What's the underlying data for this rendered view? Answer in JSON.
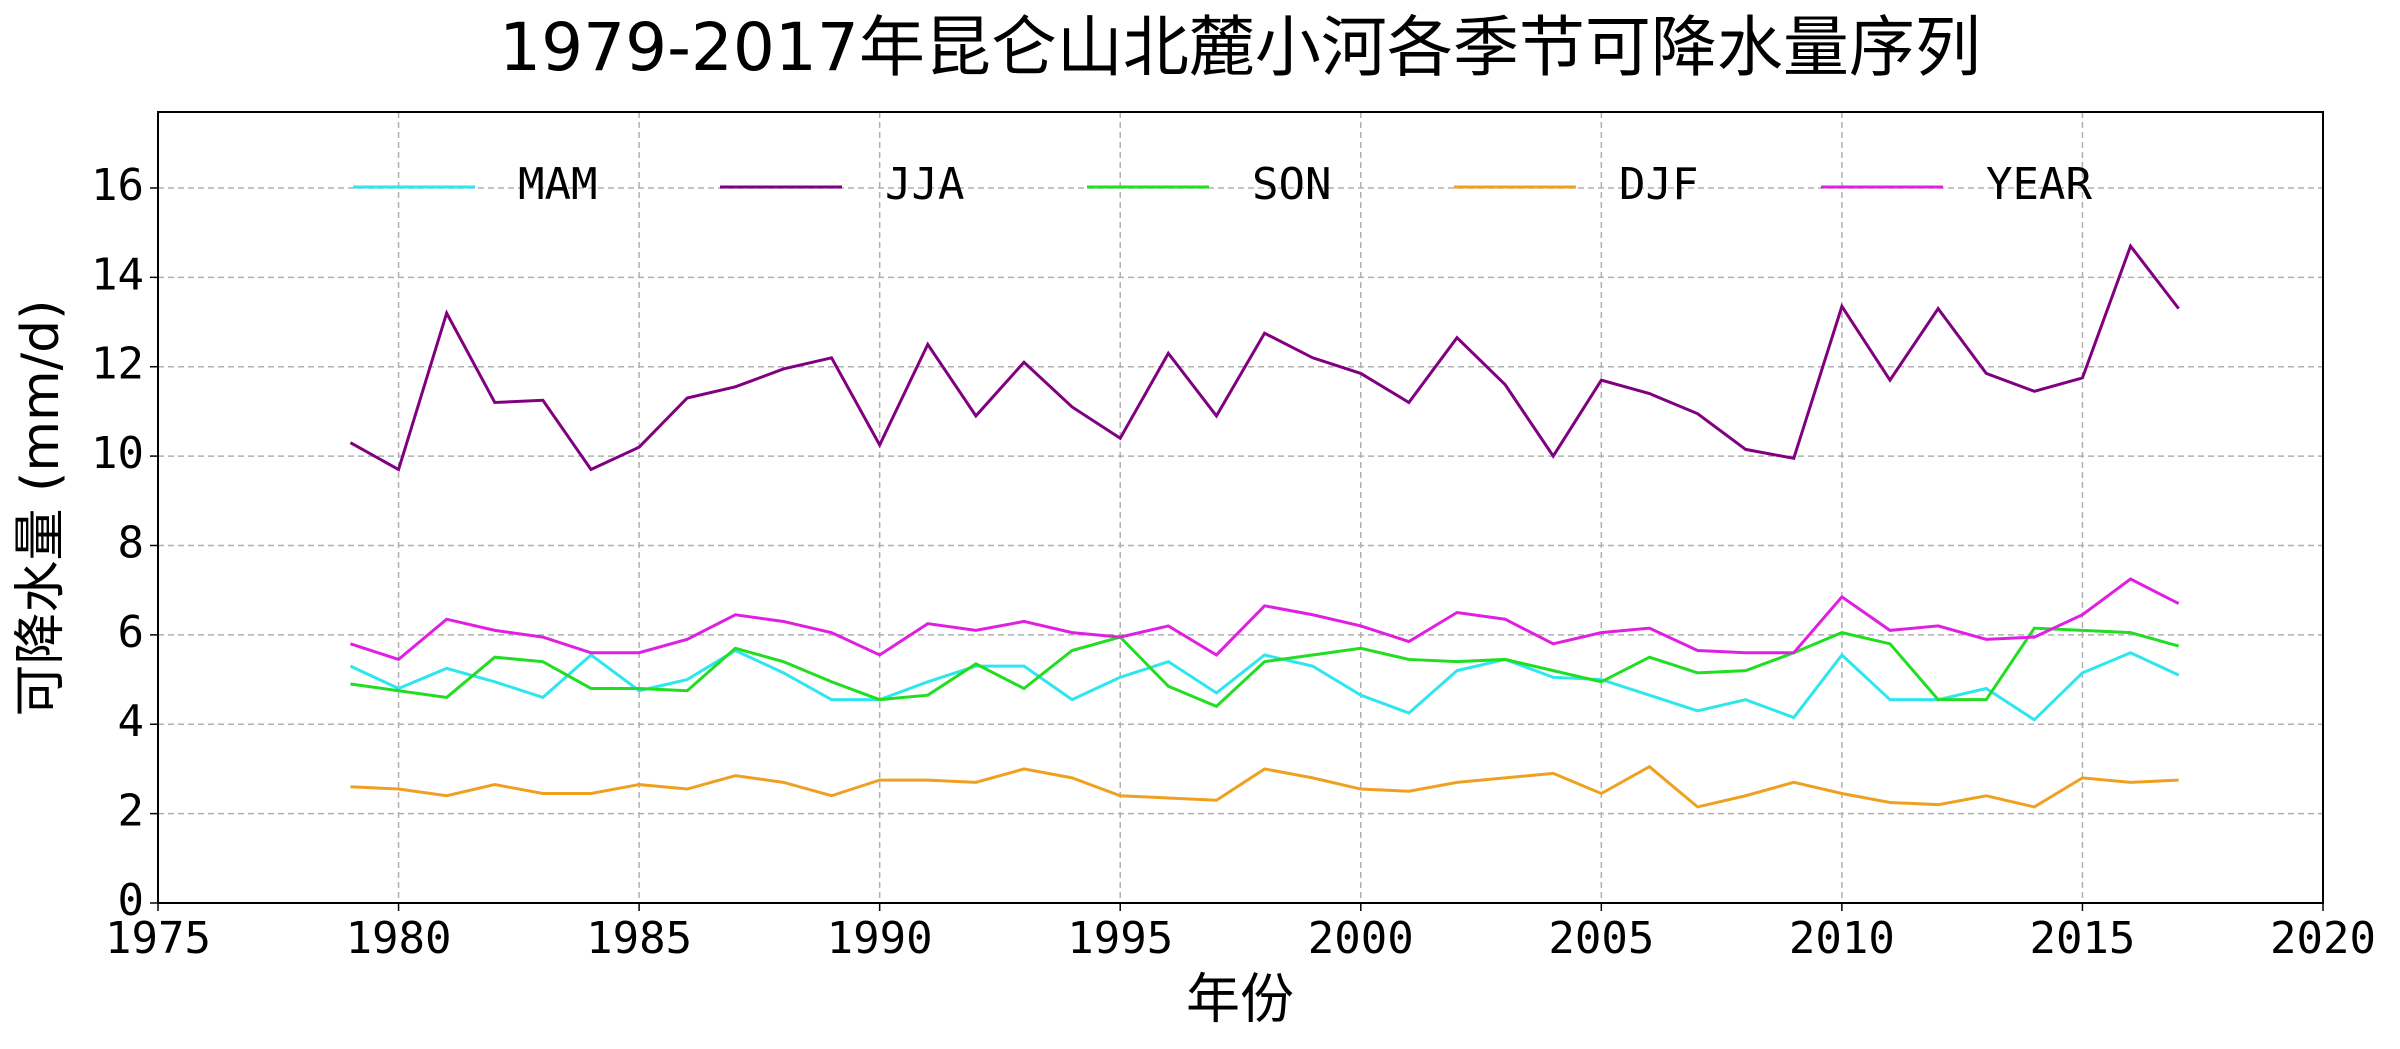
{
  "chart_data": {
    "type": "line",
    "title": "1979-2017年昆仑山北麓小河各季节可降水量序列",
    "x_label": "年份",
    "y_label": "可降水量 (mm/d)",
    "x": [
      1979,
      1980,
      1981,
      1982,
      1983,
      1984,
      1985,
      1986,
      1987,
      1988,
      1989,
      1990,
      1991,
      1992,
      1993,
      1994,
      1995,
      1996,
      1997,
      1998,
      1999,
      2000,
      2001,
      2002,
      2003,
      2004,
      2005,
      2006,
      2007,
      2008,
      2009,
      2010,
      2011,
      2012,
      2013,
      2014,
      2015,
      2016,
      2017
    ],
    "series": [
      {
        "name": "MAM",
        "color": "#2ee6ee",
        "values": [
          5.3,
          4.8,
          5.25,
          4.95,
          4.6,
          5.55,
          4.75,
          5.0,
          5.65,
          5.15,
          4.55,
          4.55,
          4.95,
          5.3,
          5.3,
          4.55,
          5.05,
          5.4,
          4.7,
          5.55,
          5.3,
          4.65,
          4.25,
          5.2,
          5.45,
          5.05,
          5.0,
          4.65,
          4.3,
          4.55,
          4.15,
          5.55,
          4.55,
          4.55,
          4.8,
          4.1,
          5.15,
          5.6,
          5.1
        ]
      },
      {
        "name": "JJA",
        "color": "#800080",
        "values": [
          10.3,
          9.7,
          13.2,
          11.2,
          11.25,
          9.7,
          10.2,
          11.3,
          11.55,
          11.95,
          12.2,
          10.25,
          12.5,
          10.9,
          12.1,
          11.1,
          10.4,
          12.3,
          10.9,
          12.75,
          12.2,
          11.85,
          11.2,
          12.65,
          11.6,
          10.0,
          11.7,
          11.4,
          10.95,
          10.15,
          9.95,
          13.35,
          11.7,
          13.3,
          11.85,
          11.45,
          11.75,
          14.7,
          13.3
        ]
      },
      {
        "name": "SON",
        "color": "#22dd22",
        "values": [
          4.9,
          4.75,
          4.6,
          5.5,
          5.4,
          4.8,
          4.8,
          4.75,
          5.7,
          5.4,
          4.95,
          4.55,
          4.65,
          5.35,
          4.8,
          5.65,
          5.95,
          4.85,
          4.4,
          5.4,
          5.55,
          5.7,
          5.45,
          5.4,
          5.45,
          5.2,
          4.95,
          5.5,
          5.15,
          5.2,
          5.6,
          6.05,
          5.8,
          4.55,
          4.55,
          6.15,
          6.1,
          6.05,
          5.75
        ]
      },
      {
        "name": "DJF",
        "color": "#f0a020",
        "values": [
          2.6,
          2.55,
          2.4,
          2.65,
          2.45,
          2.45,
          2.65,
          2.55,
          2.85,
          2.7,
          2.4,
          2.75,
          2.75,
          2.7,
          3.0,
          2.8,
          2.4,
          2.35,
          2.3,
          3.0,
          2.8,
          2.55,
          2.5,
          2.7,
          2.8,
          2.9,
          2.45,
          3.05,
          2.15,
          2.4,
          2.7,
          2.45,
          2.25,
          2.2,
          2.4,
          2.15,
          2.8,
          2.7,
          2.75
        ]
      },
      {
        "name": "YEAR",
        "color": "#e020e0",
        "values": [
          5.8,
          5.45,
          6.35,
          6.1,
          5.95,
          5.6,
          5.6,
          5.9,
          6.45,
          6.3,
          6.05,
          5.55,
          6.25,
          6.1,
          6.3,
          6.05,
          5.95,
          6.2,
          5.55,
          6.65,
          6.45,
          6.2,
          5.85,
          6.5,
          6.35,
          5.8,
          6.05,
          6.15,
          5.65,
          5.6,
          5.6,
          6.85,
          6.1,
          6.2,
          5.9,
          5.95,
          6.45,
          7.25,
          6.7
        ]
      }
    ],
    "xlim": [
      1975,
      2020
    ],
    "xticks": [
      1975,
      1980,
      1985,
      1990,
      1995,
      2000,
      2005,
      2010,
      2015,
      2020
    ],
    "ylim": [
      0,
      17.7
    ],
    "yticks": [
      0,
      2,
      4,
      6,
      8,
      10,
      12,
      14,
      16
    ],
    "grid": true,
    "legend": "upper center"
  }
}
